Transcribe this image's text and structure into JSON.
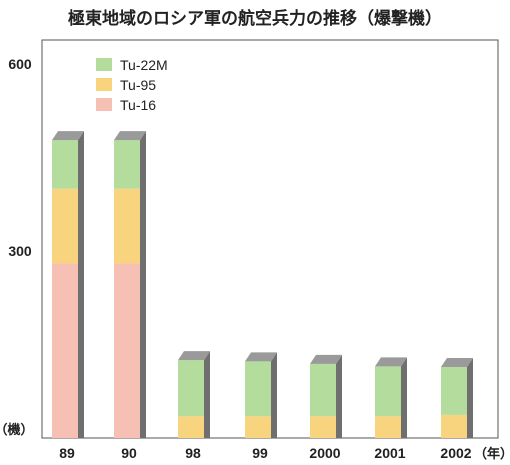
{
  "chart_data": {
    "type": "bar",
    "stacked": true,
    "title": "極東地域のロシア軍の航空兵力の推移（爆撃機）",
    "ylabel": "（機）",
    "xunit": "（年）",
    "categories": [
      "89",
      "90",
      "98",
      "99",
      "2000",
      "2001",
      "2002"
    ],
    "ylim": [
      0,
      650
    ],
    "yticks": [
      300,
      600
    ],
    "series": [
      {
        "name": "Tu-16",
        "color": "#f7c0b4",
        "values": [
          280,
          280,
          0,
          0,
          0,
          0,
          0
        ]
      },
      {
        "name": "Tu-95",
        "color": "#f8d47e",
        "values": [
          120,
          120,
          35,
          35,
          35,
          35,
          37
        ]
      },
      {
        "name": "Tu-22M",
        "color": "#b4dc9c",
        "values": [
          78,
          78,
          90,
          88,
          84,
          80,
          77
        ]
      }
    ],
    "legend": [
      "Tu-22M",
      "Tu-95",
      "Tu-16"
    ],
    "legend_position": "top-left",
    "grid": false
  }
}
